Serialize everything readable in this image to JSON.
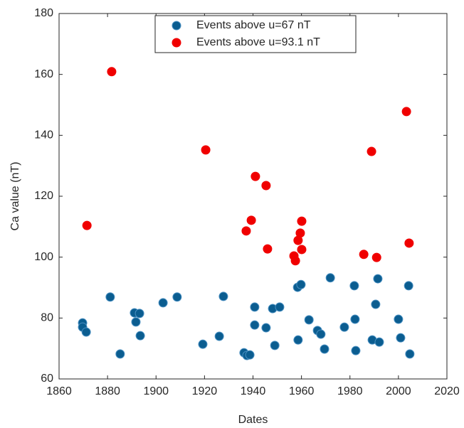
{
  "chart_data": {
    "type": "scatter",
    "xlabel": "Dates",
    "ylabel": "Ca value (nT)",
    "xlim": [
      1860,
      2020
    ],
    "ylim": [
      60,
      180
    ],
    "xticks": [
      1860,
      1880,
      1900,
      1920,
      1940,
      1960,
      1980,
      2000,
      2020
    ],
    "yticks": [
      60,
      80,
      100,
      120,
      140,
      160,
      180
    ],
    "legend": "top",
    "series": [
      {
        "name": "Events above u=67 nT",
        "color": "#0b5d90",
        "x": [
          1869.7,
          1869.7,
          1871.2,
          1881.1,
          1885.2,
          1891.1,
          1891.7,
          1893.2,
          1893.5,
          1902.9,
          1908.7,
          1919.3,
          1926.1,
          1927.8,
          1936.3,
          1937.5,
          1938.7,
          1940.7,
          1940.7,
          1945.4,
          1948.1,
          1949.0,
          1951.0,
          1958.4,
          1958.6,
          1959.8,
          1963.1,
          1966.6,
          1968.0,
          1969.5,
          1971.9,
          1977.7,
          1981.8,
          1982.1,
          1982.4,
          1989.2,
          1990.6,
          1991.5,
          1992.1,
          2000.0,
          2000.9,
          2004.2,
          2004.7
        ],
        "values": [
          78.4,
          77.0,
          75.4,
          86.9,
          68.2,
          81.7,
          78.7,
          81.5,
          74.2,
          85.0,
          86.9,
          71.4,
          74.0,
          87.1,
          68.6,
          67.7,
          67.9,
          77.7,
          83.6,
          76.8,
          83.1,
          71.0,
          83.6,
          90.1,
          72.8,
          91.0,
          79.4,
          75.9,
          74.7,
          69.8,
          93.2,
          77.0,
          90.6,
          79.6,
          69.3,
          72.8,
          84.5,
          92.9,
          72.1,
          79.6,
          73.5,
          90.6,
          68.2
        ]
      },
      {
        "name": "Events above u=93.1 nT",
        "color": "#f00000",
        "x": [
          1871.5,
          1881.7,
          1920.5,
          1937.2,
          1939.3,
          1941.0,
          1945.4,
          1946.0,
          1956.9,
          1957.5,
          1958.6,
          1959.5,
          1960.1,
          1960.1,
          1985.7,
          1988.9,
          1991.0,
          2003.3,
          2004.4
        ],
        "values": [
          110.4,
          160.9,
          135.2,
          108.6,
          112.1,
          126.5,
          123.5,
          102.7,
          100.4,
          98.8,
          105.5,
          107.9,
          111.8,
          102.5,
          100.9,
          134.7,
          99.9,
          147.8,
          104.6
        ]
      }
    ]
  }
}
